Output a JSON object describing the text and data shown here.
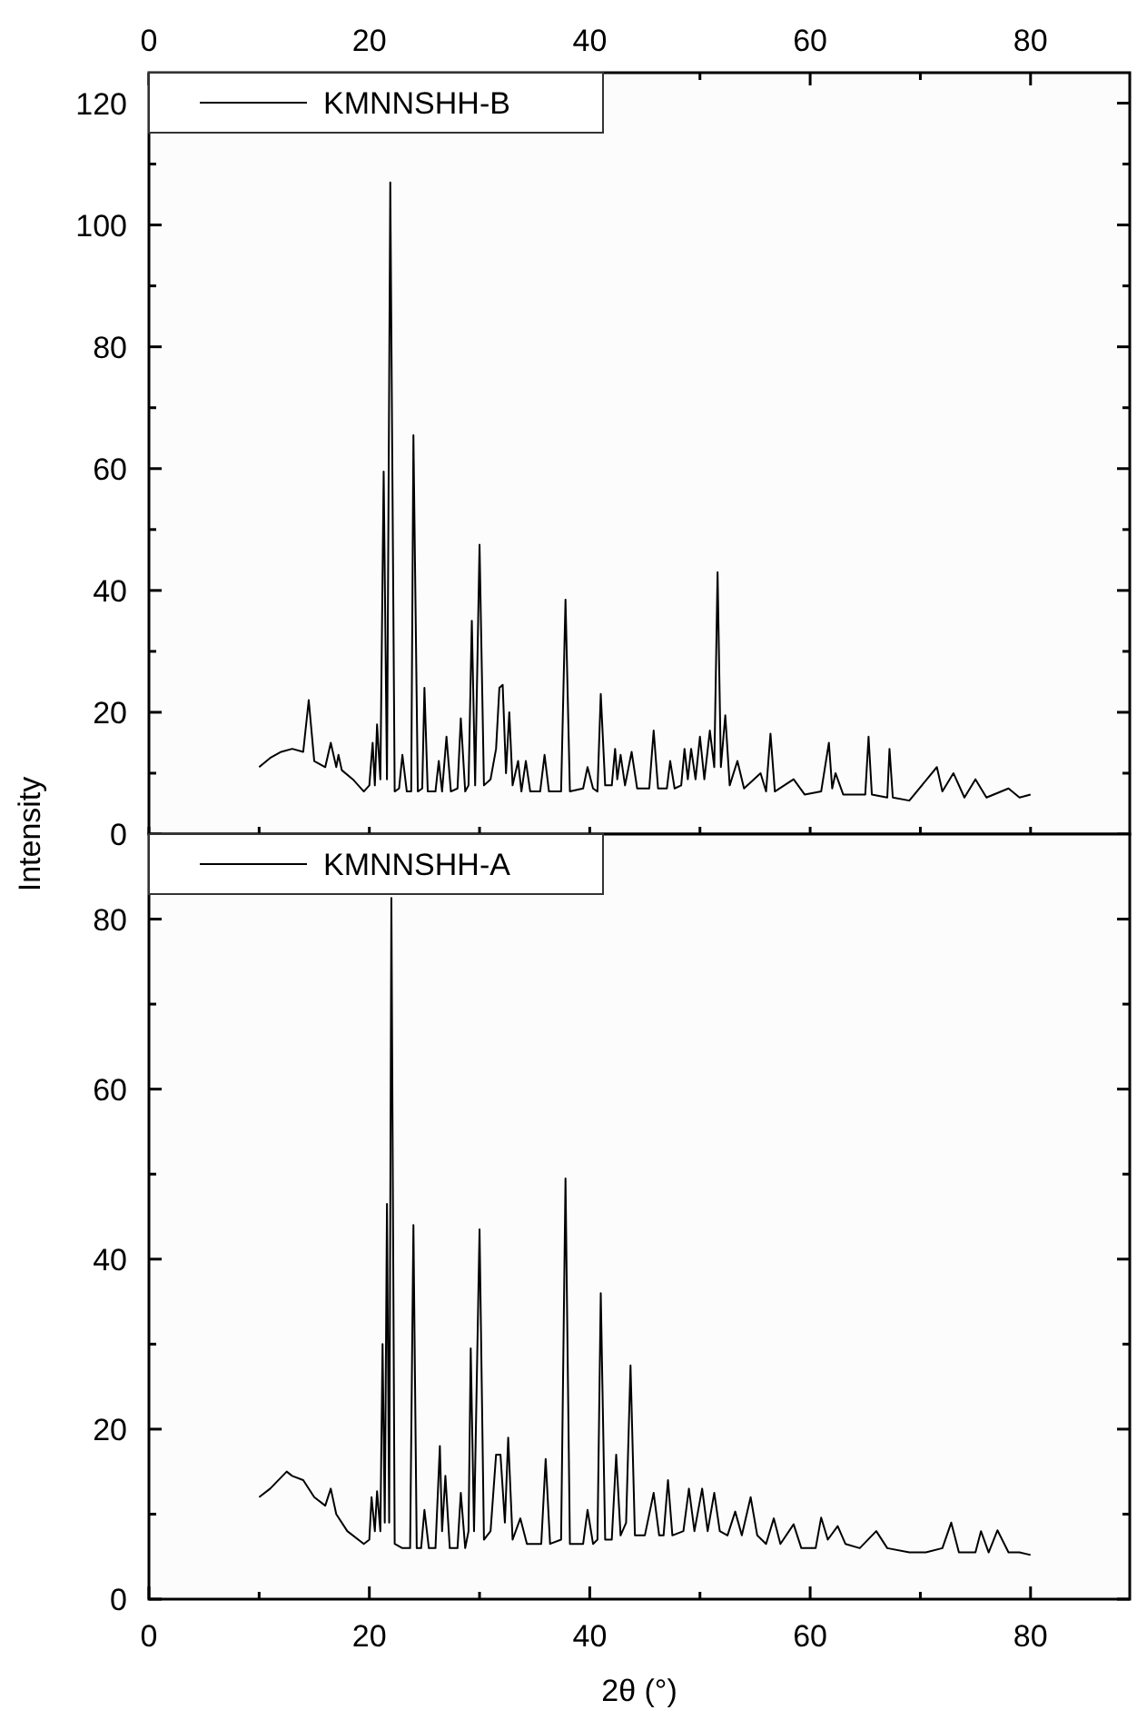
{
  "chart_data": [
    {
      "type": "line",
      "xlim": [
        0,
        89
      ],
      "xticks": [
        {
          "value": 0,
          "label": null
        },
        {
          "value": 10,
          "label": null
        },
        {
          "value": 20,
          "label": null
        },
        {
          "value": 30,
          "label": null
        },
        {
          "value": 40,
          "label": null
        },
        {
          "value": 50,
          "label": null
        },
        {
          "value": 60,
          "label": null
        },
        {
          "value": 70,
          "label": null
        },
        {
          "value": 80,
          "label": null
        }
      ],
      "x2lim": [
        0,
        89
      ],
      "x2ticks": [
        0,
        {
          "value": 10,
          "label": null
        },
        20,
        {
          "value": 30,
          "label": null
        },
        40,
        {
          "value": 50,
          "label": null
        },
        60,
        {
          "value": 70,
          "label": null
        },
        80
      ],
      "ylim": [
        0,
        125
      ],
      "yticks": [
        0,
        {
          "value": 10,
          "label": null
        },
        20,
        {
          "value": 30,
          "label": null
        },
        40,
        {
          "value": 50,
          "label": null
        },
        60,
        {
          "value": 70,
          "label": null
        },
        80,
        {
          "value": 90,
          "label": null
        },
        100,
        {
          "value": 110,
          "label": null
        },
        120
      ],
      "tick_labels": "y",
      "legend": "top left",
      "grid": false,
      "series": [
        {
          "name": "KMNNSHH-B",
          "color": "#000000",
          "x": [
            10,
            11,
            12,
            13,
            14,
            14.5,
            15,
            16,
            16.5,
            17,
            17.2,
            17.5,
            18.5,
            19.5,
            20,
            20.3,
            20.5,
            20.7,
            21,
            21.3,
            21.6,
            21.9,
            22.3,
            22.7,
            23,
            23.4,
            23.8,
            24,
            24.4,
            24.8,
            25,
            25.3,
            26,
            26.3,
            26.6,
            27,
            27.4,
            28,
            28.3,
            28.7,
            29,
            29.3,
            29.6,
            30,
            30.4,
            31,
            31.5,
            31.8,
            32.1,
            32.4,
            32.7,
            33,
            33.5,
            33.8,
            34.2,
            34.6,
            35.5,
            35.9,
            36.3,
            37.4,
            37.8,
            38.2,
            39.4,
            39.8,
            40.3,
            40.7,
            41,
            41.4,
            42,
            42.3,
            42.5,
            42.8,
            43.2,
            43.8,
            44.3,
            45.4,
            45.8,
            46.2,
            47,
            47.3,
            47.7,
            48.3,
            48.6,
            48.9,
            49.2,
            49.6,
            50,
            50.4,
            50.9,
            51.3,
            51.6,
            51.9,
            52.3,
            52.7,
            53.4,
            54,
            55.5,
            56,
            56.4,
            56.8,
            58.5,
            59.5,
            61,
            61.7,
            62,
            62.3,
            63,
            65,
            65.3,
            65.6,
            67,
            67.2,
            67.5,
            69,
            71.5,
            72,
            73,
            74,
            75,
            76,
            78,
            79,
            80
          ],
          "values": [
            11,
            12.5,
            13.5,
            14,
            13.5,
            22,
            12,
            11,
            15,
            11,
            13,
            10.5,
            9,
            7,
            8,
            15,
            8,
            18,
            9,
            59.5,
            9,
            107,
            7,
            7.5,
            13,
            7,
            7,
            65.5,
            7,
            7.5,
            24,
            7,
            7,
            12,
            7,
            16,
            7,
            7.5,
            19,
            7,
            8,
            35,
            8,
            47.5,
            8,
            9,
            14,
            24,
            24.5,
            10,
            20,
            8,
            12,
            7,
            12,
            7,
            7,
            13,
            7,
            7,
            38.5,
            7,
            7.5,
            11,
            7.5,
            7,
            23,
            8,
            8,
            14,
            9,
            13,
            8,
            13.5,
            7.5,
            7.5,
            17,
            7.5,
            7.5,
            12,
            7.5,
            8,
            14,
            9,
            14,
            9,
            16,
            9,
            17,
            11,
            43,
            11,
            19.5,
            8,
            12,
            7.5,
            10,
            7,
            16.5,
            7,
            9,
            6.5,
            7,
            15,
            7.5,
            10,
            6.5,
            6.5,
            16,
            6.5,
            6,
            14,
            6,
            5.5,
            11,
            7,
            10,
            6,
            9,
            6,
            7.5,
            6,
            6.5
          ]
        }
      ]
    },
    {
      "type": "line",
      "xlim": [
        0,
        89
      ],
      "xticks": [
        0,
        {
          "value": 10,
          "label": null
        },
        20,
        {
          "value": 30,
          "label": null
        },
        40,
        {
          "value": 50,
          "label": null
        },
        60,
        {
          "value": 70,
          "label": null
        },
        80
      ],
      "ylim": [
        0,
        90
      ],
      "yticks": [
        0,
        {
          "value": 10,
          "label": null
        },
        20,
        {
          "value": 30,
          "label": null
        },
        40,
        {
          "value": 50,
          "label": null
        },
        60,
        {
          "value": 70,
          "label": null
        },
        80
      ],
      "xlabel": "2θ (°)",
      "ylabel": "Intensity",
      "legend": "top left",
      "grid": false,
      "series": [
        {
          "name": "KMNNSHH-A",
          "color": "#000000",
          "x": [
            10,
            11,
            12.5,
            13,
            14,
            15,
            16,
            16.5,
            17,
            18,
            19.5,
            20,
            20.2,
            20.5,
            20.7,
            21,
            21.2,
            21.4,
            21.6,
            21.8,
            22,
            22.3,
            23,
            23.7,
            24,
            24.3,
            24.7,
            25,
            25.4,
            26,
            26.4,
            26.6,
            26.9,
            27.3,
            28,
            28.3,
            28.7,
            29,
            29.2,
            29.5,
            30,
            30.4,
            31,
            31.5,
            31.9,
            32.3,
            32.6,
            33,
            33.7,
            34.3,
            35.6,
            36,
            36.4,
            37.4,
            37.8,
            38.2,
            39.4,
            39.8,
            40.3,
            40.7,
            41,
            41.4,
            42,
            42.4,
            42.8,
            43.3,
            43.7,
            44.1,
            45,
            45.8,
            46.3,
            46.7,
            47.1,
            47.5,
            48.5,
            49,
            49.5,
            50.2,
            50.7,
            51.3,
            51.8,
            52.5,
            53.2,
            53.8,
            54.6,
            55.2,
            56,
            56.7,
            57.3,
            58.5,
            59.2,
            60.5,
            61,
            61.6,
            62.5,
            63.2,
            64.5,
            66,
            67,
            69,
            70.5,
            72,
            72.8,
            73.5,
            75,
            75.5,
            76.2,
            77,
            78,
            79,
            80
          ],
          "values": [
            12,
            13,
            15,
            14.5,
            14,
            12,
            11,
            13,
            10,
            8,
            6.5,
            7,
            12,
            8,
            12.7,
            8,
            30,
            9,
            46.5,
            9,
            82.5,
            6.5,
            6,
            6,
            44,
            6,
            6,
            10.5,
            6,
            6,
            18,
            8,
            14.5,
            6,
            6,
            12.5,
            6,
            8,
            29.5,
            8,
            43.5,
            7,
            8,
            17,
            17,
            9,
            19,
            7,
            9.5,
            6.5,
            6.5,
            16.5,
            6.5,
            7,
            49.5,
            6.5,
            6.5,
            10.5,
            6.5,
            7,
            36,
            7,
            7,
            17,
            7.5,
            9,
            27.5,
            7.5,
            7.5,
            12.5,
            7.5,
            7.5,
            14,
            7.5,
            8,
            13,
            8,
            13,
            8,
            12.5,
            8,
            7.5,
            10.3,
            7.5,
            12,
            7.5,
            6.5,
            9.5,
            6.5,
            8.8,
            6,
            6,
            9.6,
            7,
            8.6,
            6.5,
            6,
            8,
            6,
            5.5,
            5.5,
            6,
            9,
            5.5,
            5.5,
            8,
            5.5,
            8.1,
            5.5,
            5.5,
            5.2
          ]
        }
      ]
    }
  ]
}
